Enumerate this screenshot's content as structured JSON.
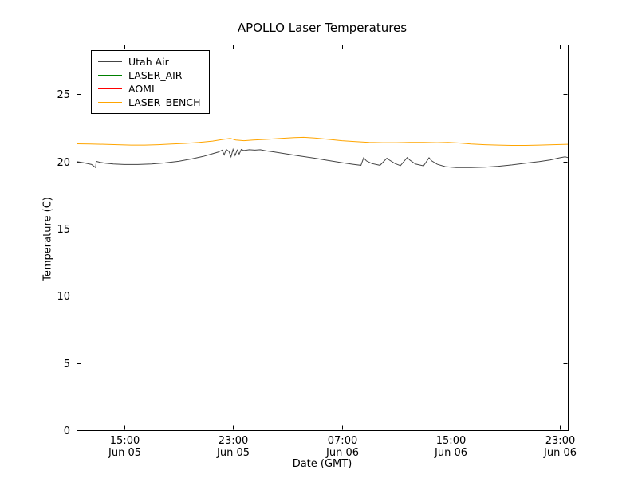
{
  "chart_data": {
    "type": "line",
    "title": "APOLLO Laser Temperatures",
    "xlabel": "Date (GMT)",
    "ylabel": "Temperature (C)",
    "xlim": [
      11.5,
      47.6
    ],
    "ylim": [
      0,
      28.7
    ],
    "grid": false,
    "legend_position": "upper-left",
    "x_unit": "hours since Jun 05 00:00 GMT",
    "x_ticks": [
      {
        "v": 15,
        "label": "15:00",
        "sub": "Jun 05"
      },
      {
        "v": 23,
        "label": "23:00",
        "sub": "Jun 05"
      },
      {
        "v": 31,
        "label": "07:00",
        "sub": "Jun 06"
      },
      {
        "v": 39,
        "label": "15:00",
        "sub": "Jun 06"
      },
      {
        "v": 47,
        "label": "23:00",
        "sub": "Jun 06"
      }
    ],
    "y_ticks": [
      0,
      5,
      10,
      15,
      20,
      25
    ],
    "series": [
      {
        "name": "Utah Air",
        "color": "#444444",
        "points": [
          [
            11.5,
            20.0
          ],
          [
            12.0,
            19.92
          ],
          [
            12.6,
            19.78
          ],
          [
            12.9,
            19.55
          ],
          [
            12.95,
            20.02
          ],
          [
            13.2,
            19.95
          ],
          [
            13.6,
            19.88
          ],
          [
            14.2,
            19.82
          ],
          [
            15.0,
            19.78
          ],
          [
            16.0,
            19.78
          ],
          [
            17.0,
            19.82
          ],
          [
            18.0,
            19.9
          ],
          [
            19.0,
            20.02
          ],
          [
            20.0,
            20.2
          ],
          [
            20.8,
            20.38
          ],
          [
            21.4,
            20.55
          ],
          [
            21.9,
            20.7
          ],
          [
            22.2,
            20.85
          ],
          [
            22.35,
            20.5
          ],
          [
            22.5,
            20.9
          ],
          [
            22.7,
            20.75
          ],
          [
            22.85,
            20.35
          ],
          [
            23.0,
            20.9
          ],
          [
            23.15,
            20.45
          ],
          [
            23.3,
            20.85
          ],
          [
            23.45,
            20.55
          ],
          [
            23.6,
            20.9
          ],
          [
            23.8,
            20.82
          ],
          [
            24.2,
            20.88
          ],
          [
            24.6,
            20.85
          ],
          [
            25.0,
            20.88
          ],
          [
            25.4,
            20.8
          ],
          [
            26.0,
            20.72
          ],
          [
            27.0,
            20.55
          ],
          [
            28.0,
            20.4
          ],
          [
            29.0,
            20.25
          ],
          [
            30.0,
            20.08
          ],
          [
            31.0,
            19.92
          ],
          [
            31.8,
            19.8
          ],
          [
            32.4,
            19.72
          ],
          [
            32.6,
            20.28
          ],
          [
            32.8,
            20.05
          ],
          [
            33.2,
            19.85
          ],
          [
            33.8,
            19.72
          ],
          [
            34.3,
            20.25
          ],
          [
            34.5,
            20.1
          ],
          [
            34.9,
            19.85
          ],
          [
            35.3,
            19.7
          ],
          [
            35.8,
            20.3
          ],
          [
            36.0,
            20.1
          ],
          [
            36.4,
            19.82
          ],
          [
            37.0,
            19.68
          ],
          [
            37.4,
            20.28
          ],
          [
            37.6,
            20.05
          ],
          [
            38.0,
            19.8
          ],
          [
            38.6,
            19.62
          ],
          [
            39.4,
            19.55
          ],
          [
            40.5,
            19.55
          ],
          [
            41.5,
            19.58
          ],
          [
            42.5,
            19.65
          ],
          [
            43.5,
            19.75
          ],
          [
            44.5,
            19.88
          ],
          [
            45.5,
            20.0
          ],
          [
            46.3,
            20.12
          ],
          [
            47.0,
            20.28
          ],
          [
            47.4,
            20.35
          ],
          [
            47.6,
            20.3
          ]
        ]
      },
      {
        "name": "LASER_AIR",
        "color": "#008000",
        "points": []
      },
      {
        "name": "AOML",
        "color": "#ff0000",
        "points": []
      },
      {
        "name": "LASER_BENCH",
        "color": "#ffa500",
        "points": [
          [
            11.5,
            21.32
          ],
          [
            12.5,
            21.3
          ],
          [
            13.5,
            21.28
          ],
          [
            14.5,
            21.25
          ],
          [
            15.5,
            21.22
          ],
          [
            16.5,
            21.22
          ],
          [
            17.5,
            21.25
          ],
          [
            18.5,
            21.3
          ],
          [
            19.5,
            21.35
          ],
          [
            20.5,
            21.42
          ],
          [
            21.5,
            21.52
          ],
          [
            22.3,
            21.65
          ],
          [
            22.8,
            21.72
          ],
          [
            23.2,
            21.6
          ],
          [
            23.8,
            21.55
          ],
          [
            24.5,
            21.6
          ],
          [
            25.5,
            21.65
          ],
          [
            26.5,
            21.72
          ],
          [
            27.5,
            21.78
          ],
          [
            28.2,
            21.8
          ],
          [
            29.0,
            21.75
          ],
          [
            30.0,
            21.65
          ],
          [
            31.0,
            21.55
          ],
          [
            32.0,
            21.48
          ],
          [
            33.0,
            21.42
          ],
          [
            34.0,
            21.4
          ],
          [
            35.0,
            21.4
          ],
          [
            36.0,
            21.42
          ],
          [
            37.0,
            21.42
          ],
          [
            38.0,
            21.4
          ],
          [
            38.8,
            21.42
          ],
          [
            39.5,
            21.38
          ],
          [
            40.5,
            21.3
          ],
          [
            41.5,
            21.25
          ],
          [
            42.5,
            21.22
          ],
          [
            43.5,
            21.2
          ],
          [
            44.5,
            21.2
          ],
          [
            45.5,
            21.22
          ],
          [
            46.5,
            21.25
          ],
          [
            47.6,
            21.28
          ]
        ]
      }
    ]
  }
}
